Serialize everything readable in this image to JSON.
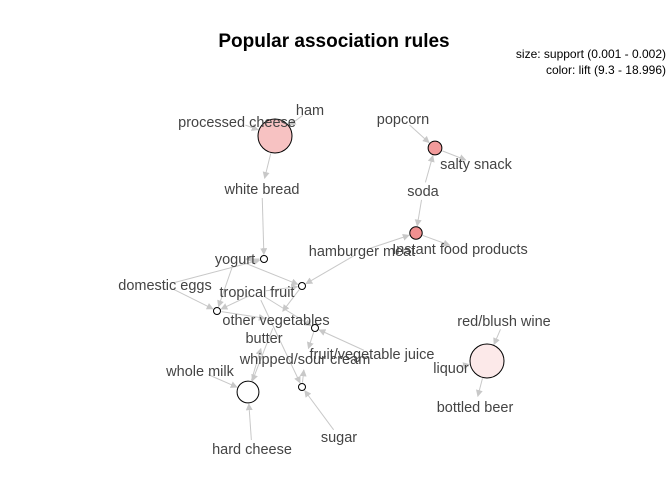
{
  "title": "Popular association rules",
  "legend": {
    "size": "size: support (0.001 - 0.002)",
    "color": "color: lift (9.3 - 18.996)"
  },
  "colors": {
    "edge": "#c8c8c8",
    "text": "#444444",
    "rule_low": "#ffffff",
    "rule_high": "#f09090"
  },
  "items": [
    {
      "id": "ham",
      "label": "ham"
    },
    {
      "id": "processed_cheese",
      "label": "processed cheese"
    },
    {
      "id": "white_bread",
      "label": "white bread"
    },
    {
      "id": "popcorn",
      "label": "popcorn"
    },
    {
      "id": "salty_snack",
      "label": "salty snack"
    },
    {
      "id": "soda",
      "label": "soda"
    },
    {
      "id": "hamburger_meat",
      "label": "hamburger meat"
    },
    {
      "id": "instant_food_products",
      "label": "Instant food products"
    },
    {
      "id": "yogurt",
      "label": "yogurt"
    },
    {
      "id": "domestic_eggs",
      "label": "domestic eggs"
    },
    {
      "id": "tropical_fruit",
      "label": "tropical fruit"
    },
    {
      "id": "other_vegetables",
      "label": "other vegetables"
    },
    {
      "id": "butter",
      "label": "butter"
    },
    {
      "id": "whipped_sour_cream",
      "label": "whipped/sour cream"
    },
    {
      "id": "fruit_vegetable_juice",
      "label": "fruit/vegetable juice"
    },
    {
      "id": "whole_milk",
      "label": "whole milk"
    },
    {
      "id": "hard_cheese",
      "label": "hard cheese"
    },
    {
      "id": "sugar",
      "label": "sugar"
    },
    {
      "id": "red_blush_wine",
      "label": "red/blush wine"
    },
    {
      "id": "liquor",
      "label": "liquor"
    },
    {
      "id": "bottled_beer",
      "label": "bottled beer"
    }
  ],
  "rules": [
    {
      "id": "rule-1",
      "lhs": [
        "ham",
        "processed_cheese"
      ],
      "rhs": "white_bread",
      "support_level": 1.0,
      "lift_level": 0.55
    },
    {
      "id": "rule-2",
      "lhs": [
        "popcorn",
        "soda"
      ],
      "rhs": "salty_snack",
      "support_level": 0.25,
      "lift_level": 0.9
    },
    {
      "id": "rule-3",
      "lhs": [
        "soda",
        "hamburger_meat"
      ],
      "rhs": "instant_food_products",
      "support_level": 0.2,
      "lift_level": 1.0
    },
    {
      "id": "rule-4",
      "lhs": [
        "white_bread",
        "domestic_eggs"
      ],
      "rhs": "yogurt",
      "support_level": 0.0,
      "lift_level": 0.0
    },
    {
      "id": "rule-5",
      "lhs": [
        "hamburger_meat",
        "yogurt",
        "tropical_fruit"
      ],
      "rhs": "other_vegetables",
      "support_level": 0.0,
      "lift_level": 0.0
    },
    {
      "id": "rule-6",
      "lhs": [
        "domestic_eggs",
        "yogurt",
        "tropical_fruit"
      ],
      "rhs": "other_vegetables",
      "support_level": 0.0,
      "lift_level": 0.0
    },
    {
      "id": "rule-7",
      "lhs": [
        "tropical_fruit",
        "fruit_vegetable_juice"
      ],
      "rhs": "whipped_sour_cream",
      "support_level": 0.0,
      "lift_level": 0.0
    },
    {
      "id": "rule-8",
      "lhs": [
        "other_vegetables",
        "whole_milk",
        "hard_cheese"
      ],
      "rhs": "butter",
      "support_level": 0.55,
      "lift_level": 0.0
    },
    {
      "id": "rule-9",
      "lhs": [
        "tropical_fruit",
        "sugar"
      ],
      "rhs": "whipped_sour_cream",
      "support_level": 0.0,
      "lift_level": 0.0
    },
    {
      "id": "rule-10",
      "lhs": [
        "red_blush_wine",
        "liquor"
      ],
      "rhs": "bottled_beer",
      "support_level": 1.0,
      "lift_level": 0.2
    }
  ]
}
